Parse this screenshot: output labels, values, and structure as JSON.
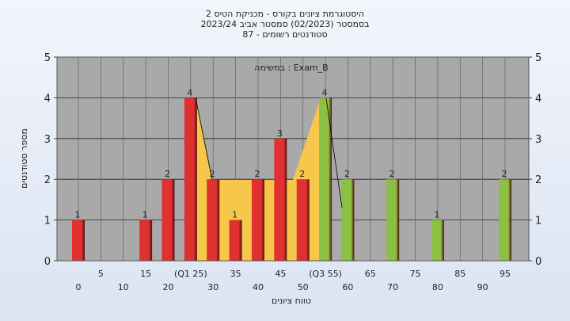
{
  "chart_data": {
    "type": "bar",
    "title": "היסטוגרמת ציונים בקורס - מכניקת הטיס 2",
    "subtitle": [
      "בסמסטר  (02/2023)  סמסטר אביב 2023/24",
      "סטודנטים רשומים - 87"
    ],
    "annotation": "במשימה : Exam_B",
    "x_label": "טווח ציונים",
    "y_label": "מספר סטודנטים",
    "categories": [
      "0",
      "5",
      "10",
      "15",
      "20",
      "(Q1 25)",
      "30",
      "35",
      "40",
      "45",
      "50",
      "(Q3 55)",
      "60",
      "65",
      "70",
      "75",
      "80",
      "85",
      "90",
      "95"
    ],
    "values": [
      1,
      0,
      0,
      1,
      2,
      4,
      2,
      1,
      2,
      3,
      2,
      4,
      2,
      0,
      2,
      0,
      1,
      0,
      0,
      2
    ],
    "colors": [
      "#e03030",
      "#e03030",
      "#e03030",
      "#e03030",
      "#e03030",
      "#e03030",
      "#e03030",
      "#e03030",
      "#e03030",
      "#e03030",
      "#e03030",
      "#8cc043",
      "#8cc043",
      "#8cc043",
      "#8cc043",
      "#8cc043",
      "#8cc043",
      "#8cc043",
      "#8cc043",
      "#8cc043"
    ],
    "ylim": [
      0,
      5
    ],
    "yticks": [
      0,
      1,
      2,
      3,
      4,
      5
    ],
    "grid": true
  }
}
